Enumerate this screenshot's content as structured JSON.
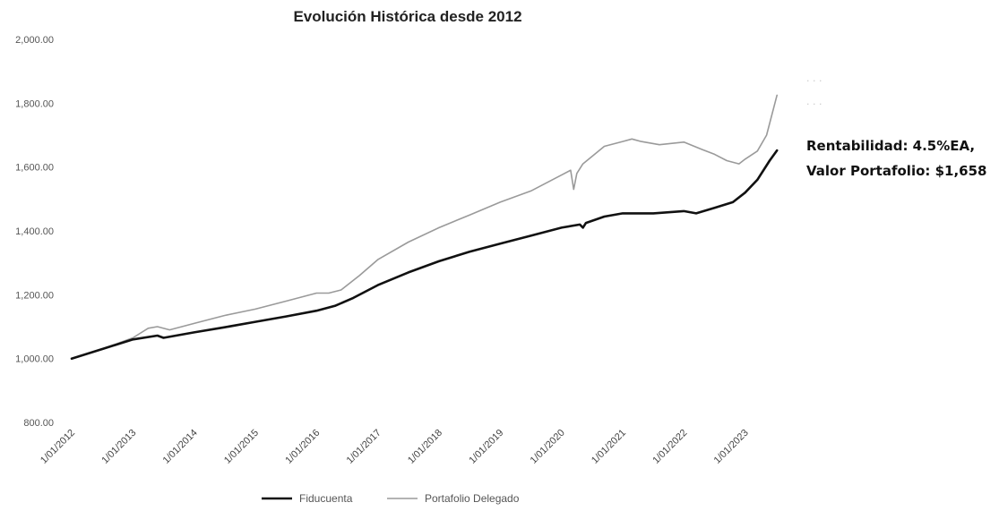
{
  "chart_data": {
    "type": "line",
    "title": "Evolución Histórica desde 2012",
    "xlabel": "",
    "ylabel": "",
    "ylim": [
      800,
      2000
    ],
    "yticks": [
      "2,000.00",
      "1,800.00",
      "1,600.00",
      "1,400.00",
      "1,200.00",
      "1,000.00",
      "800.00"
    ],
    "ytick_values": [
      2000,
      1800,
      1600,
      1400,
      1200,
      1000,
      800
    ],
    "xlim": [
      2012.0,
      2024.0
    ],
    "xticks": [
      "1/01/2012",
      "1/01/2013",
      "1/01/2014",
      "1/01/2015",
      "1/01/2016",
      "1/01/2017",
      "1/01/2018",
      "1/01/2019",
      "1/01/2020",
      "1/01/2021",
      "1/01/2022",
      "1/01/2023"
    ],
    "xtick_values": [
      2012,
      2013,
      2014,
      2015,
      2016,
      2017,
      2018,
      2019,
      2020,
      2021,
      2022,
      2023
    ],
    "grid": false,
    "legend_position": "bottom",
    "series": [
      {
        "name": "Fiducuenta",
        "color": "#111111",
        "x": [
          2012.0,
          2012.5,
          2013.0,
          2013.4,
          2013.5,
          2014.0,
          2014.5,
          2015.0,
          2015.5,
          2016.0,
          2016.3,
          2016.6,
          2017.0,
          2017.5,
          2018.0,
          2018.5,
          2019.0,
          2019.5,
          2020.0,
          2020.3,
          2020.35,
          2020.4,
          2020.7,
          2021.0,
          2021.5,
          2022.0,
          2022.2,
          2022.5,
          2022.8,
          2023.0,
          2023.2,
          2023.4,
          2023.52
        ],
        "y": [
          1000,
          1030,
          1060,
          1072,
          1065,
          1082,
          1098,
          1115,
          1132,
          1150,
          1165,
          1190,
          1230,
          1270,
          1305,
          1335,
          1360,
          1385,
          1410,
          1420,
          1410,
          1425,
          1445,
          1455,
          1455,
          1462,
          1455,
          1472,
          1490,
          1520,
          1560,
          1620,
          1652
        ]
      },
      {
        "name": "Portafolio Delegado",
        "color": "#9a9a9a",
        "x": [
          2012.0,
          2012.5,
          2013.0,
          2013.25,
          2013.4,
          2013.6,
          2014.0,
          2014.5,
          2015.0,
          2015.5,
          2016.0,
          2016.2,
          2016.4,
          2016.7,
          2017.0,
          2017.5,
          2018.0,
          2018.5,
          2019.0,
          2019.5,
          2020.0,
          2020.15,
          2020.2,
          2020.25,
          2020.35,
          2020.7,
          2021.0,
          2021.15,
          2021.3,
          2021.6,
          2022.0,
          2022.3,
          2022.5,
          2022.7,
          2022.9,
          2023.0,
          2023.2,
          2023.35,
          2023.52
        ],
        "y": [
          1000,
          1030,
          1065,
          1095,
          1100,
          1090,
          1110,
          1135,
          1155,
          1180,
          1205,
          1205,
          1215,
          1260,
          1310,
          1365,
          1410,
          1450,
          1490,
          1525,
          1575,
          1590,
          1530,
          1580,
          1610,
          1665,
          1680,
          1688,
          1680,
          1670,
          1678,
          1655,
          1640,
          1620,
          1610,
          1625,
          1650,
          1700,
          1825
        ]
      }
    ],
    "annotations": [
      {
        "line1": "Rentabilidad: 4.5%EA,",
        "line2": "Valor Portafolio: $1,658",
        "series": "Fiducuenta"
      }
    ]
  }
}
